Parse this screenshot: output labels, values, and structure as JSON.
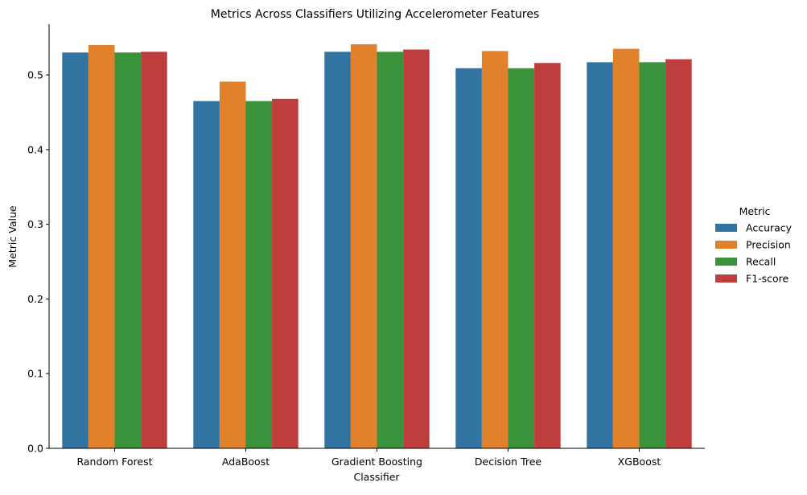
{
  "chart_data": {
    "type": "bar",
    "title": "Metrics Across Classifiers Utilizing Accelerometer Features",
    "xlabel": "Classifier",
    "ylabel": "Metric Value",
    "categories": [
      "Random Forest",
      "AdaBoost",
      "Gradient Boosting",
      "Decision Tree",
      "XGBoost"
    ],
    "series": [
      {
        "name": "Accuracy",
        "color": "#3274a1",
        "values": [
          0.53,
          0.465,
          0.531,
          0.509,
          0.517
        ]
      },
      {
        "name": "Precision",
        "color": "#e1812c",
        "values": [
          0.54,
          0.491,
          0.541,
          0.532,
          0.535
        ]
      },
      {
        "name": "Recall",
        "color": "#3a923a",
        "values": [
          0.53,
          0.465,
          0.531,
          0.509,
          0.517
        ]
      },
      {
        "name": "F1-score",
        "color": "#c03d3e",
        "values": [
          0.531,
          0.468,
          0.534,
          0.516,
          0.521
        ]
      }
    ],
    "ylim": [
      0,
      0.568
    ],
    "yticks": [
      0.0,
      0.1,
      0.2,
      0.3,
      0.4,
      0.5
    ],
    "ytick_labels": [
      "0.0",
      "0.1",
      "0.2",
      "0.3",
      "0.4",
      "0.5"
    ],
    "grid": false,
    "legend": {
      "title": "Metric",
      "placement": "right"
    }
  }
}
